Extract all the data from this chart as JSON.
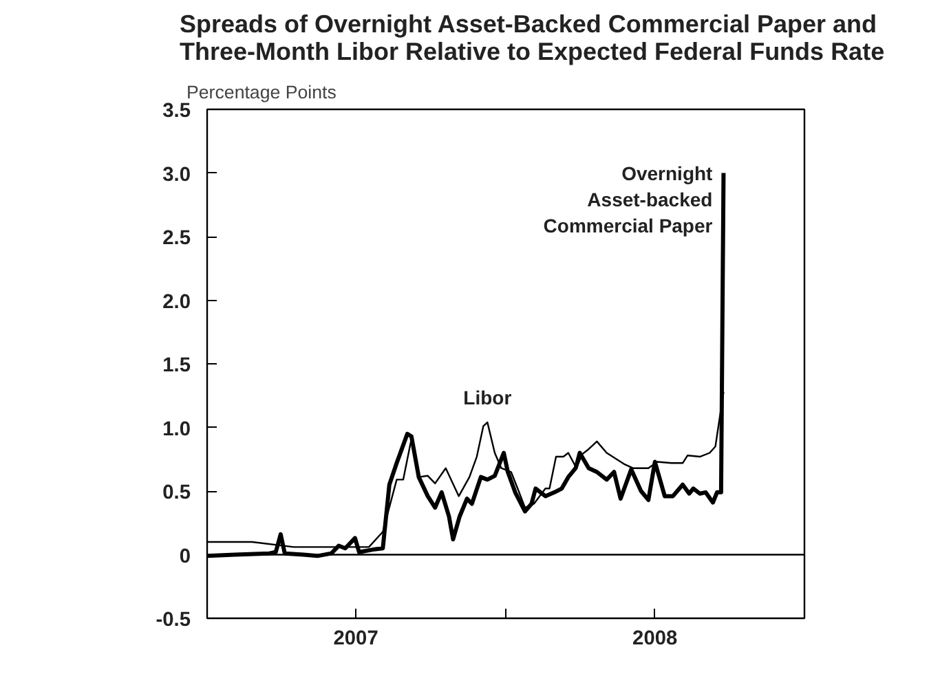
{
  "chart_data": {
    "type": "line",
    "title": "Spreads of Overnight Asset-Backed Commercial Paper and Three-Month Libor Relative to Expected Federal Funds Rate",
    "ylabel": "Percentage Points",
    "xlim": [
      "2007-01-01",
      "2009-01-01"
    ],
    "xticks": [
      {
        "value": "2007-07-02",
        "label": "2007"
      },
      {
        "value": "2008-01-01",
        "label": null
      },
      {
        "value": "2008-07-02",
        "label": "2008"
      }
    ],
    "ylim": [
      -0.5,
      3.5
    ],
    "yticks": [
      {
        "value": -0.5,
        "label": "-0.5"
      },
      0,
      {
        "value": 0.5,
        "label": "0.5"
      },
      {
        "value": 1,
        "label": "1.0"
      },
      {
        "value": 1.5,
        "label": "1.5"
      },
      {
        "value": 2,
        "label": "2.0"
      },
      {
        "value": 2.5,
        "label": "2.5"
      },
      {
        "value": 3,
        "label": "3.0"
      },
      {
        "value": 3.5,
        "label": "3.5"
      }
    ],
    "grid": false,
    "line_style": "solid",
    "marker": "none",
    "ref_lines": [
      {
        "axis": "y",
        "value": 0,
        "label": null,
        "color": "#000000"
      }
    ],
    "series": [
      {
        "name": "Overnight Asset-backed Commercial Paper",
        "color": "#000000",
        "x": [
          "2007-01-01",
          "2007-02-04",
          "2007-03-18",
          "2007-03-26",
          "2007-04-01",
          "2007-04-06",
          "2007-04-29",
          "2007-05-16",
          "2007-06-02",
          "2007-06-11",
          "2007-06-19",
          "2007-07-01",
          "2007-07-06",
          "2007-07-23",
          "2007-08-04",
          "2007-08-12",
          "2007-08-21",
          "2007-09-03",
          "2007-09-08",
          "2007-09-17",
          "2007-09-28",
          "2007-10-07",
          "2007-10-15",
          "2007-10-24",
          "2007-10-29",
          "2007-11-06",
          "2007-11-15",
          "2007-11-21",
          "2007-12-02",
          "2007-12-10",
          "2007-12-19",
          "2007-12-30",
          "2008-01-04",
          "2008-01-13",
          "2008-01-25",
          "2008-02-02",
          "2008-02-07",
          "2008-02-19",
          "2008-03-01",
          "2008-03-10",
          "2008-03-18",
          "2008-03-27",
          "2008-04-01",
          "2008-04-12",
          "2008-04-22",
          "2008-05-04",
          "2008-05-13",
          "2008-05-21",
          "2008-06-03",
          "2008-06-15",
          "2008-06-24",
          "2008-07-02",
          "2008-07-14",
          "2008-07-24",
          "2008-08-05",
          "2008-08-13",
          "2008-08-18",
          "2008-08-26",
          "2008-09-02",
          "2008-09-11",
          "2008-09-16",
          "2008-09-21",
          "2008-09-24"
        ],
        "values": [
          -0.01,
          0,
          0.01,
          0.02,
          0.16,
          0.01,
          0,
          -0.01,
          0.01,
          0.07,
          0.05,
          0.13,
          0.02,
          0.04,
          0.05,
          0.55,
          0.72,
          0.95,
          0.93,
          0.61,
          0.46,
          0.37,
          0.49,
          0.3,
          0.12,
          0.3,
          0.44,
          0.4,
          0.61,
          0.59,
          0.62,
          0.8,
          0.65,
          0.49,
          0.34,
          0.4,
          0.52,
          0.46,
          0.49,
          0.52,
          0.61,
          0.68,
          0.8,
          0.68,
          0.65,
          0.59,
          0.65,
          0.44,
          0.67,
          0.5,
          0.43,
          0.73,
          0.46,
          0.46,
          0.55,
          0.48,
          0.52,
          0.48,
          0.49,
          0.41,
          0.49,
          0.49,
          3.0
        ]
      },
      {
        "name": "Libor",
        "color": "#000000",
        "x": [
          "2007-01-01",
          "2007-02-25",
          "2007-04-17",
          "2007-06-24",
          "2007-07-18",
          "2007-08-04",
          "2007-08-21",
          "2007-08-29",
          "2007-09-08",
          "2007-09-17",
          "2007-09-28",
          "2007-10-07",
          "2007-10-20",
          "2007-11-05",
          "2007-11-18",
          "2007-11-27",
          "2007-12-05",
          "2007-12-10",
          "2007-12-19",
          "2007-12-27",
          "2008-01-08",
          "2008-01-16",
          "2008-01-25",
          "2008-02-05",
          "2008-02-19",
          "2008-02-24",
          "2008-03-03",
          "2008-03-12",
          "2008-03-18",
          "2008-03-28",
          "2008-04-04",
          "2008-04-12",
          "2008-04-22",
          "2008-05-04",
          "2008-05-26",
          "2008-06-05",
          "2008-06-24",
          "2008-07-05",
          "2008-07-22",
          "2008-08-05",
          "2008-08-11",
          "2008-08-26",
          "2008-09-07",
          "2008-09-14",
          "2008-09-24"
        ],
        "values": [
          0.1,
          0.1,
          0.06,
          0.06,
          0.06,
          0.18,
          0.59,
          0.59,
          0.91,
          0.61,
          0.62,
          0.56,
          0.68,
          0.46,
          0.61,
          0.77,
          1.01,
          1.04,
          0.8,
          0.68,
          0.65,
          0.52,
          0.37,
          0.4,
          0.52,
          0.52,
          0.77,
          0.77,
          0.8,
          0.68,
          0.79,
          0.83,
          0.89,
          0.8,
          0.71,
          0.68,
          0.68,
          0.73,
          0.72,
          0.72,
          0.78,
          0.77,
          0.8,
          0.85,
          1.28
        ]
      }
    ]
  }
}
